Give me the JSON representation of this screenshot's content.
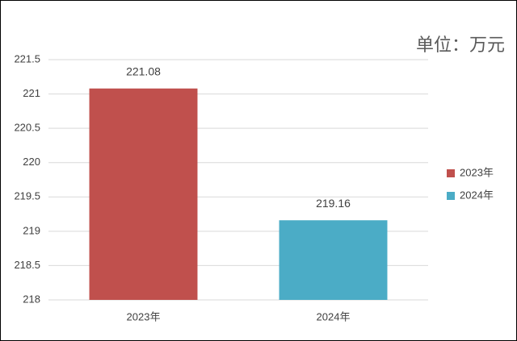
{
  "chart_data": {
    "type": "bar",
    "unit": "单位：万元",
    "categories": [
      "2023年",
      "2024年"
    ],
    "series": [
      {
        "name": "2023年",
        "color": "#c0504d",
        "values": [
          221.08,
          null
        ]
      },
      {
        "name": "2024年",
        "color": "#4bacc6",
        "values": [
          null,
          219.16
        ]
      }
    ],
    "ylim": [
      218,
      221.5
    ],
    "yticks": [
      218,
      218.5,
      219,
      219.5,
      220,
      220.5,
      221,
      221.5
    ],
    "grid": true,
    "legend": "right"
  }
}
